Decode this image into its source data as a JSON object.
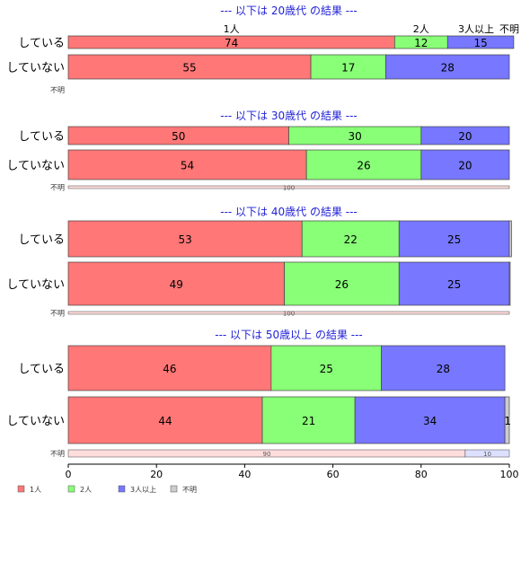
{
  "chart_data": {
    "type": "bar",
    "orientation": "horizontal",
    "stacked": true,
    "xlim": [
      0,
      100
    ],
    "xticks": [
      0,
      20,
      40,
      60,
      80,
      100
    ],
    "grid": false,
    "legend_position": "bottom-left",
    "series_names": [
      "1人",
      "2人",
      "3人以上",
      "不明"
    ],
    "colors": {
      "s1": "#ff7777",
      "s2": "#88ff77",
      "s3": "#7777ff",
      "s4": "#cccccc",
      "s1_light": "#ffdddd",
      "s3_light": "#dde0ff"
    },
    "top_labels": [
      "1人",
      "2人",
      "3人以上",
      "不明"
    ],
    "panels": [
      {
        "title": "--- 以下は 20歳代 の結果 ---",
        "rows": [
          {
            "label": "している",
            "values": [
              74,
              12,
              15,
              0
            ],
            "labels": [
              "74",
              "12",
              "15",
              ""
            ]
          },
          {
            "label": "していない",
            "values": [
              55,
              17,
              28,
              0
            ],
            "labels": [
              "55",
              "17",
              "28",
              ""
            ]
          },
          {
            "label": "不明",
            "values": [],
            "labels": []
          }
        ]
      },
      {
        "title": "--- 以下は 30歳代 の結果 ---",
        "rows": [
          {
            "label": "している",
            "values": [
              50,
              30,
              20,
              0
            ],
            "labels": [
              "50",
              "30",
              "20",
              ""
            ]
          },
          {
            "label": "していない",
            "values": [
              54,
              26,
              20,
              0
            ],
            "labels": [
              "54",
              "26",
              "20",
              ""
            ]
          },
          {
            "label": "不明",
            "values": [
              100,
              0,
              0,
              0
            ],
            "labels": [
              "100",
              "",
              "",
              ""
            ]
          }
        ]
      },
      {
        "title": "--- 以下は 40歳代 の結果 ---",
        "rows": [
          {
            "label": "している",
            "values": [
              53,
              22,
              25,
              0.5
            ],
            "labels": [
              "53",
              "22",
              "25",
              ""
            ]
          },
          {
            "label": "していない",
            "values": [
              49,
              26,
              25,
              0.2
            ],
            "labels": [
              "49",
              "26",
              "25",
              ""
            ]
          },
          {
            "label": "不明",
            "values": [
              100,
              0,
              0,
              0
            ],
            "labels": [
              "100",
              "",
              "",
              ""
            ]
          }
        ]
      },
      {
        "title": "--- 以下は 50歳以上 の結果 ---",
        "rows": [
          {
            "label": "している",
            "values": [
              46,
              25,
              28,
              0
            ],
            "labels": [
              "46",
              "25",
              "28",
              ""
            ]
          },
          {
            "label": "していない",
            "values": [
              44,
              21,
              34,
              1
            ],
            "labels": [
              "44",
              "21",
              "34",
              "1"
            ]
          },
          {
            "label": "不明",
            "values": [
              90,
              0,
              10,
              0
            ],
            "labels": [
              "90",
              "",
              "10",
              ""
            ]
          }
        ]
      }
    ]
  }
}
